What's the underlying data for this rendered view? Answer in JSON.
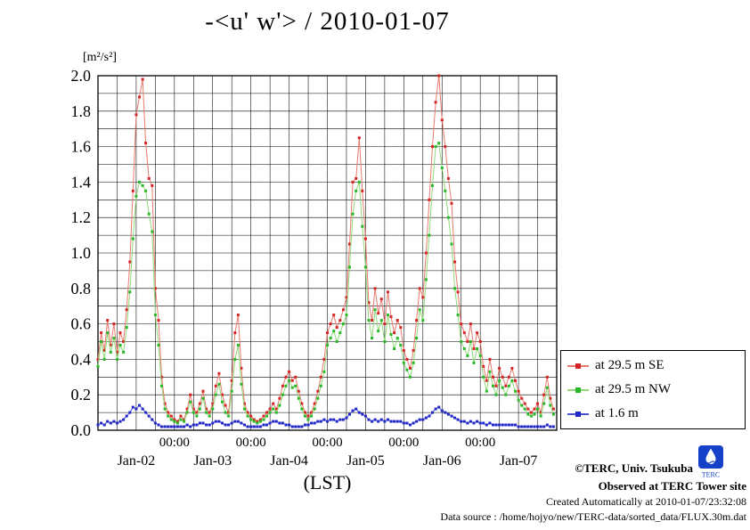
{
  "title": "-<u' w'> / 2010-01-07",
  "y_unit_label": "[m²/s²]",
  "x_axis_label": "(LST)",
  "logo_text": "TERC",
  "footer": {
    "line1": "©TERC, Univ. Tsukuba",
    "line2": "Observed at TERC Tower site",
    "line3": "Created Automatically at 2010-01-07/23:32:08",
    "line4": "Data source : /home/hojyo/new/TERC-data/sorted_data/FLUX.30m.dat"
  },
  "chart_data": {
    "type": "line",
    "title": "-<u' w'> / 2010-01-07",
    "ylabel": "[m²/s²]",
    "xlabel": "(LST)",
    "ylim": [
      0.0,
      2.0
    ],
    "y_tick_step": 0.2,
    "y_minor_step": 0.1,
    "x_start": "2010-01-02 00:00",
    "x_end": "2010-01-08 00:00",
    "x_total_hours": 144,
    "x_sample_hours": 1,
    "x_minor_grid_hours": 6,
    "grid": true,
    "legend_position": "outside-right",
    "y_ticks": [
      "0.0",
      "0.2",
      "0.4",
      "0.6",
      "0.8",
      "1.0",
      "1.2",
      "1.4",
      "1.6",
      "1.8",
      "2.0"
    ],
    "x_time_ticks": [
      {
        "hour": 24,
        "label": "00:00"
      },
      {
        "hour": 48,
        "label": "00:00"
      },
      {
        "hour": 72,
        "label": "00:00"
      },
      {
        "hour": 96,
        "label": "00:00"
      },
      {
        "hour": 120,
        "label": "00:00"
      }
    ],
    "x_date_ticks": [
      {
        "hour": 12,
        "label": "Jan-02"
      },
      {
        "hour": 36,
        "label": "Jan-03"
      },
      {
        "hour": 60,
        "label": "Jan-04"
      },
      {
        "hour": 84,
        "label": "Jan-05"
      },
      {
        "hour": 108,
        "label": "Jan-06"
      },
      {
        "hour": 132,
        "label": "Jan-07"
      }
    ],
    "series": [
      {
        "name": "at 29.5 m SE",
        "marker_color": "#d42424",
        "line_color": "#e87a6e",
        "values": [
          0.4,
          0.55,
          0.45,
          0.62,
          0.48,
          0.6,
          0.44,
          0.55,
          0.5,
          0.68,
          0.95,
          1.35,
          1.78,
          1.88,
          1.98,
          1.62,
          1.42,
          1.38,
          0.8,
          0.62,
          0.3,
          0.15,
          0.1,
          0.08,
          0.06,
          0.05,
          0.08,
          0.06,
          0.12,
          0.2,
          0.12,
          0.1,
          0.15,
          0.22,
          0.12,
          0.1,
          0.15,
          0.25,
          0.32,
          0.2,
          0.14,
          0.1,
          0.28,
          0.55,
          0.65,
          0.35,
          0.15,
          0.1,
          0.08,
          0.06,
          0.05,
          0.06,
          0.08,
          0.1,
          0.12,
          0.15,
          0.12,
          0.18,
          0.25,
          0.3,
          0.33,
          0.28,
          0.3,
          0.22,
          0.15,
          0.1,
          0.08,
          0.1,
          0.15,
          0.22,
          0.3,
          0.4,
          0.55,
          0.6,
          0.65,
          0.58,
          0.62,
          0.68,
          0.75,
          1.05,
          1.4,
          1.42,
          1.65,
          1.35,
          1.08,
          0.72,
          0.62,
          0.8,
          0.66,
          0.74,
          0.6,
          0.78,
          0.64,
          0.55,
          0.62,
          0.58,
          0.45,
          0.4,
          0.35,
          0.45,
          0.62,
          0.8,
          0.75,
          1.0,
          1.3,
          1.6,
          1.85,
          2.0,
          1.75,
          1.6,
          1.42,
          1.28,
          0.95,
          0.78,
          0.6,
          0.55,
          0.5,
          0.6,
          0.46,
          0.55,
          0.5,
          0.36,
          0.28,
          0.4,
          0.3,
          0.25,
          0.35,
          0.3,
          0.25,
          0.3,
          0.35,
          0.28,
          0.22,
          0.18,
          0.15,
          0.12,
          0.1,
          0.12,
          0.15,
          0.1,
          0.2,
          0.3,
          0.18,
          0.12
        ]
      },
      {
        "name": "at 29.5 m NW",
        "marker_color": "#28b828",
        "line_color": "#90d878",
        "values": [
          0.36,
          0.5,
          0.4,
          0.55,
          0.44,
          0.52,
          0.4,
          0.48,
          0.44,
          0.58,
          0.78,
          1.08,
          1.32,
          1.4,
          1.38,
          1.35,
          1.22,
          1.12,
          0.65,
          0.48,
          0.25,
          0.12,
          0.08,
          0.06,
          0.05,
          0.04,
          0.06,
          0.05,
          0.1,
          0.16,
          0.1,
          0.08,
          0.12,
          0.18,
          0.1,
          0.08,
          0.12,
          0.2,
          0.26,
          0.16,
          0.1,
          0.08,
          0.22,
          0.4,
          0.48,
          0.26,
          0.12,
          0.08,
          0.06,
          0.05,
          0.04,
          0.05,
          0.06,
          0.08,
          0.1,
          0.12,
          0.1,
          0.14,
          0.2,
          0.25,
          0.28,
          0.24,
          0.25,
          0.18,
          0.12,
          0.08,
          0.06,
          0.08,
          0.12,
          0.18,
          0.25,
          0.33,
          0.48,
          0.52,
          0.56,
          0.5,
          0.55,
          0.6,
          0.65,
          0.92,
          1.22,
          1.35,
          1.4,
          1.15,
          0.92,
          0.62,
          0.52,
          0.68,
          0.56,
          0.62,
          0.5,
          0.65,
          0.54,
          0.46,
          0.52,
          0.48,
          0.38,
          0.34,
          0.3,
          0.38,
          0.52,
          0.68,
          0.62,
          0.85,
          1.1,
          1.38,
          1.6,
          1.62,
          1.48,
          1.35,
          1.2,
          1.05,
          0.8,
          0.65,
          0.5,
          0.46,
          0.42,
          0.5,
          0.38,
          0.46,
          0.42,
          0.3,
          0.22,
          0.33,
          0.25,
          0.2,
          0.28,
          0.24,
          0.2,
          0.25,
          0.28,
          0.22,
          0.17,
          0.14,
          0.12,
          0.09,
          0.08,
          0.09,
          0.12,
          0.08,
          0.15,
          0.24,
          0.14,
          0.09
        ]
      },
      {
        "name": "at 1.6 m",
        "marker_color": "#2228c8",
        "line_color": "#4a50d4",
        "values": [
          0.03,
          0.04,
          0.03,
          0.05,
          0.04,
          0.05,
          0.04,
          0.05,
          0.06,
          0.08,
          0.1,
          0.13,
          0.12,
          0.14,
          0.12,
          0.1,
          0.08,
          0.06,
          0.04,
          0.03,
          0.02,
          0.02,
          0.02,
          0.02,
          0.02,
          0.02,
          0.02,
          0.02,
          0.03,
          0.02,
          0.03,
          0.03,
          0.04,
          0.04,
          0.03,
          0.03,
          0.04,
          0.05,
          0.05,
          0.04,
          0.03,
          0.03,
          0.04,
          0.05,
          0.05,
          0.04,
          0.03,
          0.02,
          0.02,
          0.02,
          0.02,
          0.02,
          0.03,
          0.03,
          0.04,
          0.05,
          0.05,
          0.04,
          0.04,
          0.03,
          0.03,
          0.02,
          0.02,
          0.02,
          0.02,
          0.03,
          0.03,
          0.04,
          0.04,
          0.05,
          0.05,
          0.06,
          0.05,
          0.06,
          0.06,
          0.05,
          0.06,
          0.06,
          0.07,
          0.09,
          0.11,
          0.12,
          0.1,
          0.09,
          0.08,
          0.06,
          0.05,
          0.06,
          0.05,
          0.06,
          0.05,
          0.06,
          0.05,
          0.05,
          0.05,
          0.05,
          0.04,
          0.04,
          0.03,
          0.04,
          0.05,
          0.06,
          0.06,
          0.07,
          0.08,
          0.1,
          0.12,
          0.13,
          0.11,
          0.1,
          0.09,
          0.08,
          0.07,
          0.06,
          0.05,
          0.05,
          0.04,
          0.05,
          0.04,
          0.05,
          0.04,
          0.04,
          0.03,
          0.04,
          0.03,
          0.03,
          0.03,
          0.03,
          0.03,
          0.03,
          0.03,
          0.03,
          0.02,
          0.02,
          0.02,
          0.02,
          0.02,
          0.02,
          0.02,
          0.02,
          0.02,
          0.03,
          0.02,
          0.02
        ]
      }
    ]
  }
}
